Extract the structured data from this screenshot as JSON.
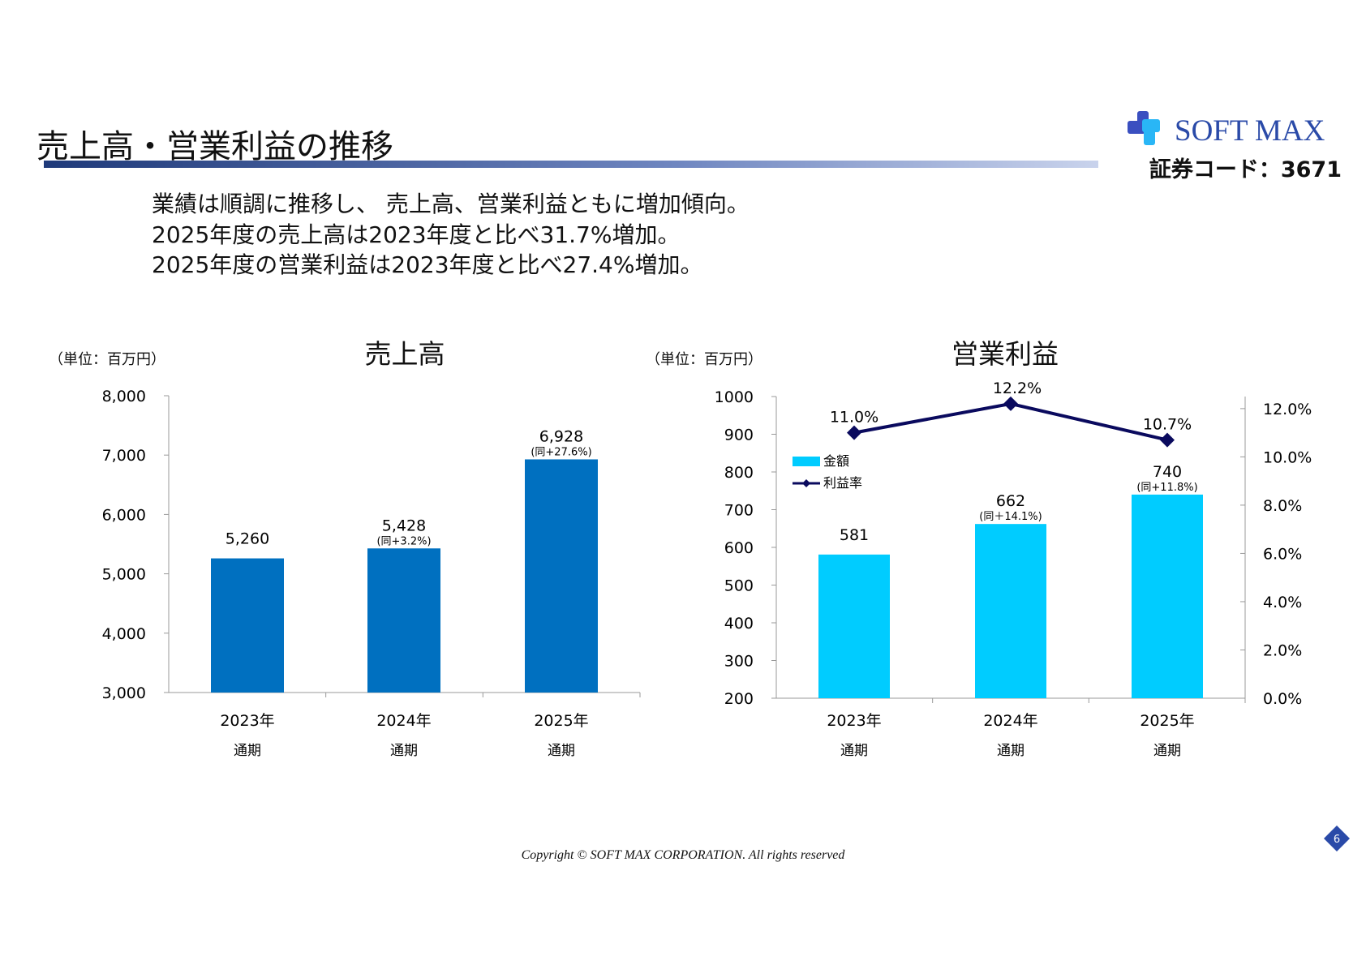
{
  "header": {
    "title": "売上高・営業利益の推移",
    "logo_text": "SOFT MAX",
    "stock_code": "証券コード：3671"
  },
  "summary": [
    "業績は順調に推移し、 売上高、営業利益ともに増加傾向。",
    "2025年度の売上高は2023年度と比べ31.7%増加。",
    "2025年度の営業利益は2023年度と比べ27.4%増加。"
  ],
  "footer": {
    "copyright": "Copyright © SOFT MAX CORPORATION. All rights reserved",
    "page": "6"
  },
  "colors": {
    "sales_bar": "#0070c0",
    "profit_bar": "#00ccff",
    "margin_line": "#0a0a5e",
    "brand": "#2a4aa8"
  },
  "chart_data": [
    {
      "type": "bar",
      "title": "売上高",
      "unit_label": "（単位：百万円）",
      "categories": [
        "2023年",
        "2024年",
        "2025年"
      ],
      "sublabels": [
        "通期",
        "通期",
        "通期"
      ],
      "values": [
        5260,
        5428,
        6928
      ],
      "value_labels": [
        "5,260",
        "5,428",
        "6,928"
      ],
      "annotations": [
        "",
        "(同+3.2%)",
        "(同+27.6%)"
      ],
      "ylim": [
        3000,
        8000
      ],
      "yticks": [
        "3,000",
        "4,000",
        "5,000",
        "6,000",
        "7,000",
        "8,000"
      ],
      "grid": false
    },
    {
      "type": "bar+line",
      "title": "営業利益",
      "unit_label": "（単位：百万円）",
      "categories": [
        "2023年",
        "2024年",
        "2025年"
      ],
      "sublabels": [
        "通期",
        "通期",
        "通期"
      ],
      "series": [
        {
          "name": "金額",
          "type": "bar",
          "axis": "left",
          "values": [
            581,
            662,
            740
          ],
          "value_labels": [
            "581",
            "662",
            "740"
          ],
          "annotations": [
            "",
            "(同＋14.1%)",
            "(同+11.8%)"
          ]
        },
        {
          "name": "利益率",
          "type": "line",
          "axis": "right",
          "values": [
            11.0,
            12.2,
            10.7
          ],
          "value_labels": [
            "11.0%",
            "12.2%",
            "10.7%"
          ]
        }
      ],
      "ylim": [
        200,
        1000
      ],
      "yticks": [
        "200",
        "300",
        "400",
        "500",
        "600",
        "700",
        "800",
        "900",
        "1000"
      ],
      "y2lim": [
        0,
        12.5
      ],
      "y2ticks": [
        "0.0%",
        "2.0%",
        "4.0%",
        "6.0%",
        "8.0%",
        "10.0%",
        "12.0%"
      ],
      "legend": "upper-left",
      "grid": false
    }
  ]
}
